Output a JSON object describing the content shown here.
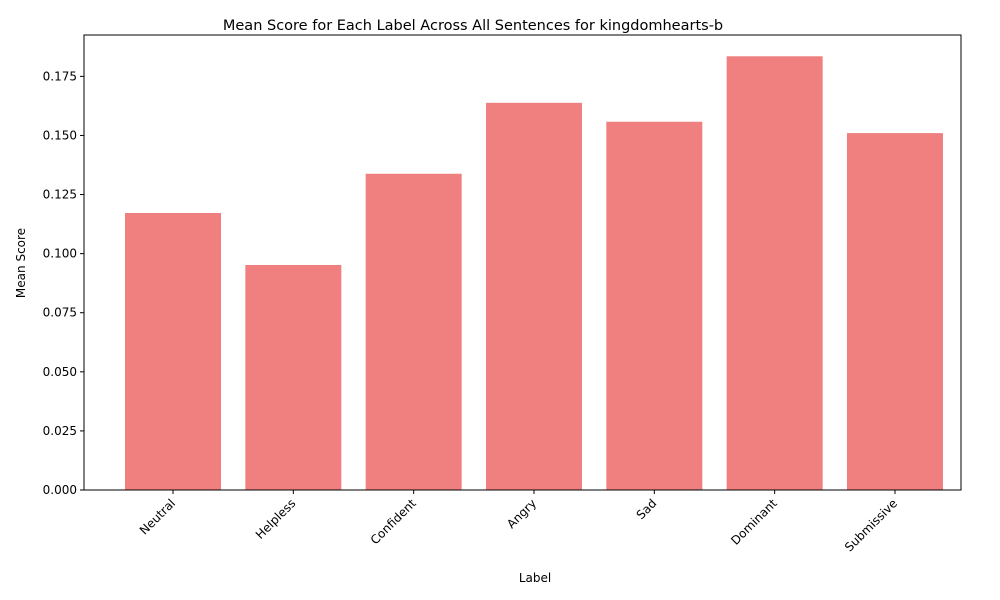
{
  "chart_data": {
    "type": "bar",
    "title": "Mean Score for Each Label Across All Sentences for kingdomhearts-b",
    "xlabel": "Label",
    "ylabel": "Mean Score",
    "categories": [
      "Neutral",
      "Helpless",
      "Confident",
      "Angry",
      "Sad",
      "Dominant",
      "Submissive"
    ],
    "values": [
      0.1172,
      0.0952,
      0.1338,
      0.1638,
      0.1558,
      0.1835,
      0.151
    ],
    "ylim": [
      0,
      0.1925
    ],
    "yticks": [
      "0.000",
      "0.025",
      "0.050",
      "0.075",
      "0.100",
      "0.125",
      "0.150",
      "0.175"
    ],
    "bar_color": "#f08080",
    "grid": false,
    "legend": "none"
  }
}
